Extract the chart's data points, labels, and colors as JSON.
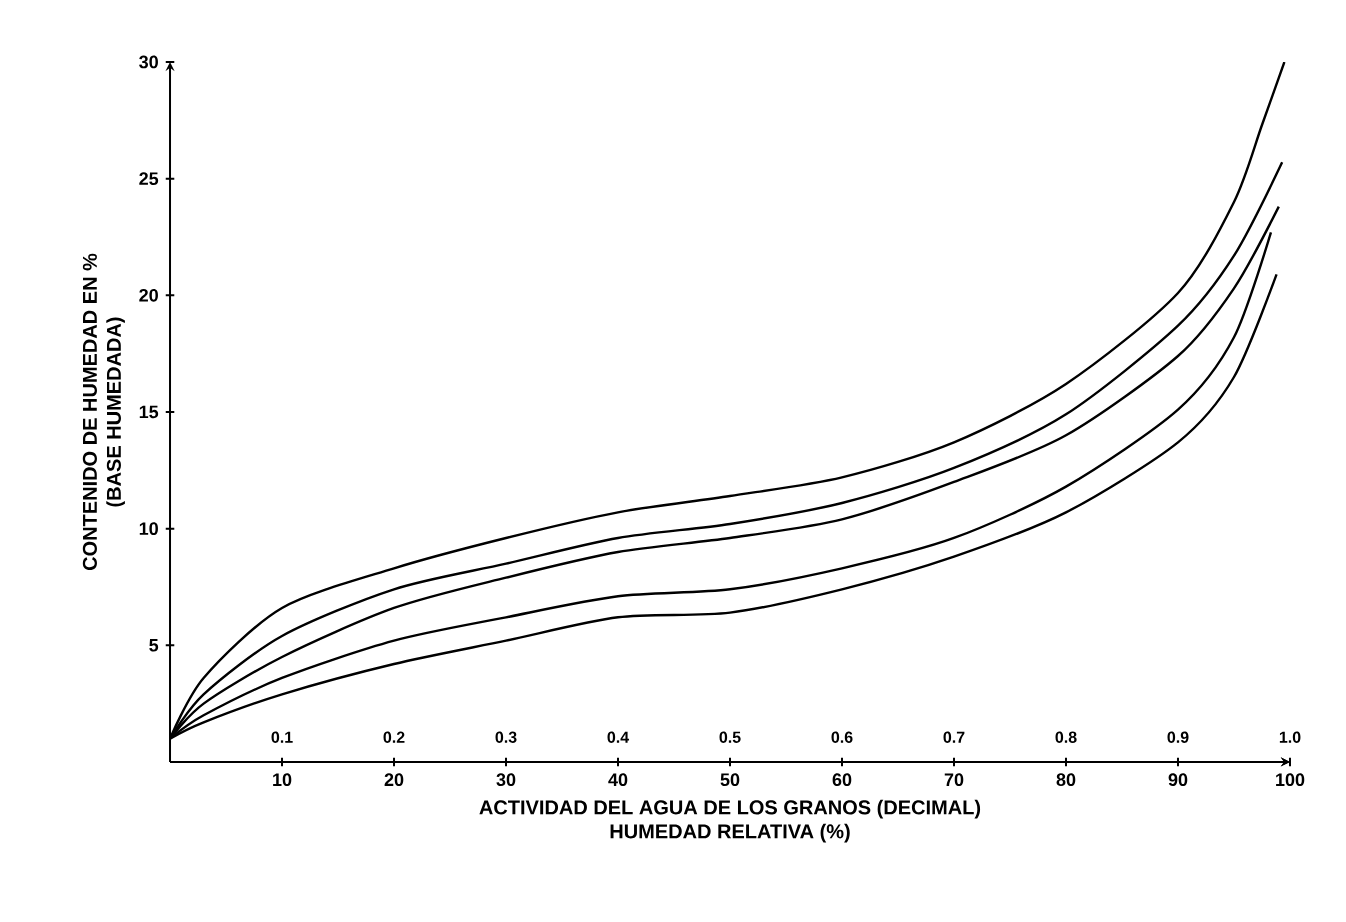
{
  "chart_data": {
    "type": "line",
    "xlabel": "HUMEDAD RELATIVA (%)",
    "x2label": "ACTIVIDAD DEL AGUA DE LOS GRANOS (DECIMAL)",
    "ylabel": "CONTENIDO DE HUMEDAD EN %",
    "annotations": [
      "(BASE HUMEDADA)"
    ],
    "xlim": [
      0,
      100
    ],
    "xticks": [
      10,
      20,
      30,
      40,
      50,
      60,
      70,
      80,
      90,
      100
    ],
    "x2lim": [
      0,
      1
    ],
    "x2ticks": [
      0.1,
      0.2,
      0.3,
      0.4,
      0.5,
      0.6,
      0.7,
      0.8,
      0.9,
      {
        "value": 1.0,
        "label": "1.0"
      }
    ],
    "ylim": [
      0,
      30
    ],
    "yticks": [
      5,
      10,
      15,
      20,
      25,
      30
    ],
    "series": [
      {
        "color": "#000000",
        "x": [
          0,
          3,
          10,
          20,
          30,
          40,
          50,
          60,
          70,
          80,
          90,
          95,
          97.5,
          99.5
        ],
        "values": [
          1.0,
          3.6,
          6.6,
          8.3,
          9.6,
          10.7,
          11.4,
          12.2,
          13.7,
          16.2,
          20.1,
          24.0,
          27.3,
          30.0
        ]
      },
      {
        "color": "#000000",
        "x": [
          0,
          3,
          10,
          20,
          30,
          40,
          50,
          60,
          70,
          80,
          90,
          95,
          99.3
        ],
        "values": [
          1.0,
          2.9,
          5.4,
          7.4,
          8.5,
          9.6,
          10.2,
          11.1,
          12.6,
          14.9,
          18.7,
          21.7,
          25.7
        ]
      },
      {
        "color": "#000000",
        "x": [
          0,
          3,
          10,
          20,
          30,
          40,
          50,
          60,
          70,
          80,
          90,
          95,
          99
        ],
        "values": [
          1.0,
          2.5,
          4.5,
          6.6,
          7.9,
          9.0,
          9.6,
          10.4,
          12.0,
          14.0,
          17.4,
          20.3,
          23.8
        ]
      },
      {
        "color": "#000000",
        "x": [
          0,
          3,
          10,
          20,
          30,
          40,
          50,
          60,
          70,
          80,
          90,
          95,
          98.3
        ],
        "values": [
          1.0,
          2.0,
          3.6,
          5.2,
          6.2,
          7.1,
          7.4,
          8.3,
          9.6,
          11.8,
          15.1,
          18.2,
          22.7
        ]
      },
      {
        "color": "#000000",
        "x": [
          0,
          3,
          10,
          20,
          30,
          40,
          50,
          60,
          70,
          80,
          90,
          95,
          98.8
        ],
        "values": [
          1.0,
          1.7,
          2.9,
          4.2,
          5.2,
          6.2,
          6.4,
          7.4,
          8.8,
          10.7,
          13.7,
          16.5,
          20.9
        ]
      }
    ]
  }
}
